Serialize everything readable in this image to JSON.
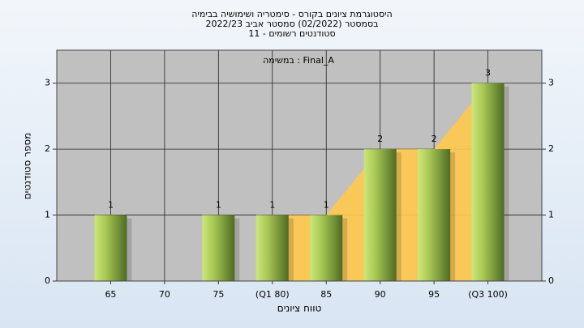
{
  "chart_data": {
    "type": "bar",
    "title": [
      "היסטוגרמת ציונים בקורס - סימטריה ושימושיה בבימיה",
      "בסמסטר  (02/2022)  סמסטר אביב 2022/23",
      "סטודנטים רשומים - 11"
    ],
    "annotation": "במשימה : Final_A",
    "x_label": "טווח ציונים",
    "y_label": "מספר סטודנטים",
    "categories": [
      "65",
      "70",
      "75",
      "(Q1 80)",
      "85",
      "90",
      "95",
      "(Q3 100)"
    ],
    "values": [
      1,
      0,
      1,
      1,
      1,
      2,
      2,
      3
    ],
    "color": "#7a9a30",
    "ylim": [
      0,
      3.5
    ],
    "yticks": [
      0,
      1,
      2,
      3
    ],
    "grid": true
  }
}
